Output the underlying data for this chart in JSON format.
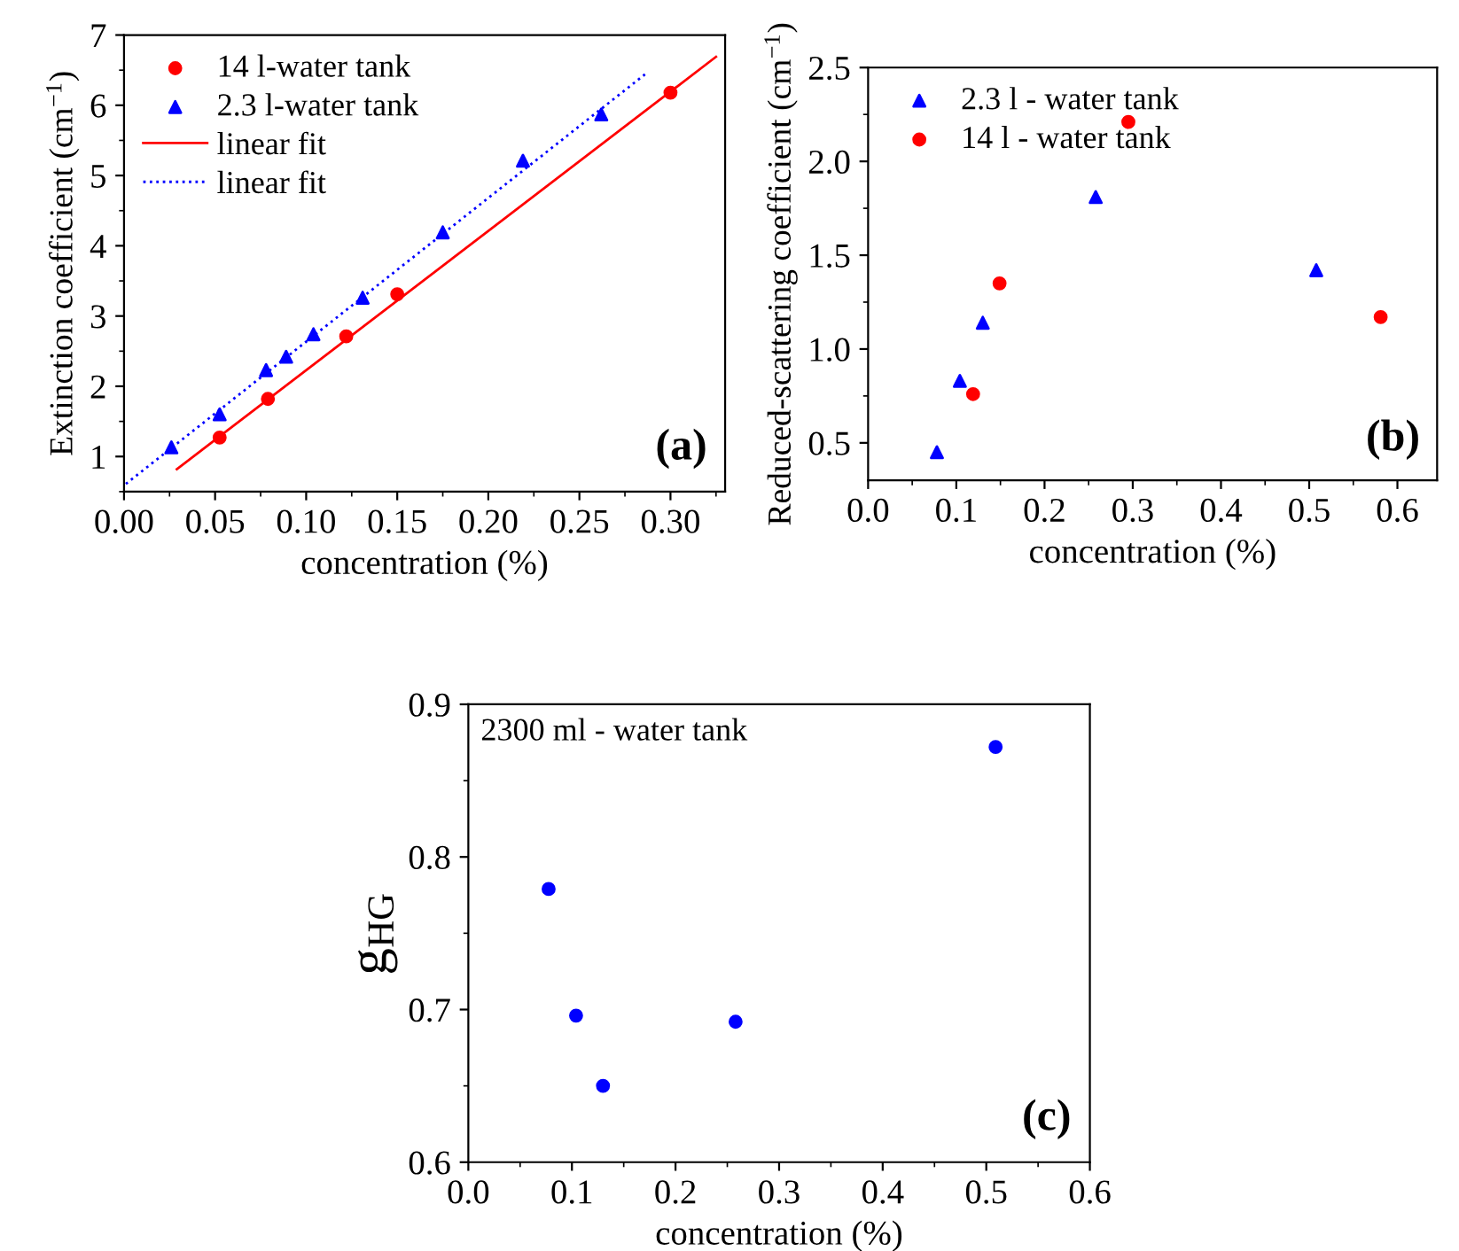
{
  "chart_data": [
    {
      "type": "scatter",
      "xlabel": "concentration (%)",
      "ylabel": "Extinction coefficient (cm$^{−1}$)",
      "xlim": [
        0,
        0.33
      ],
      "ylim": [
        0.5,
        7
      ],
      "xticks": [
        {
          "value": 0,
          "label": "0.00"
        },
        {
          "value": 0.05,
          "label": "0.05"
        },
        {
          "value": 0.1,
          "label": "0.10"
        },
        {
          "value": 0.15,
          "label": "0.15"
        },
        {
          "value": 0.2,
          "label": "0.20"
        },
        {
          "value": 0.25,
          "label": "0.25"
        },
        {
          "value": 0.3,
          "label": "0.30"
        }
      ],
      "yticks": [
        1,
        2,
        3,
        4,
        5,
        6,
        7
      ],
      "legend": "top left",
      "grid": false,
      "annotations": [
        "(a)"
      ],
      "series": [
        {
          "name": "14 l-water tank",
          "marker": "circle",
          "color": "#ff0000",
          "x": [
            0.0525,
            0.079,
            0.122,
            0.15,
            0.3
          ],
          "values": [
            1.27,
            1.82,
            2.71,
            3.31,
            6.18
          ]
        },
        {
          "name": "2.3 l-water tank",
          "marker": "triangle",
          "color": "#0000ff",
          "x": [
            0.026,
            0.0525,
            0.078,
            0.089,
            0.104,
            0.131,
            0.175,
            0.219,
            0.262
          ],
          "values": [
            1.13,
            1.6,
            2.23,
            2.42,
            2.74,
            3.26,
            4.19,
            5.21,
            5.87
          ]
        },
        {
          "name": "linear fit",
          "type": "line",
          "line_style": "solid",
          "color": "#ff0000",
          "x": [
            0.029,
            0.325
          ],
          "values": [
            0.82,
            6.69
          ]
        },
        {
          "name": "linear fit",
          "type": "line",
          "line_style": "dotted",
          "color": "#0000ff",
          "x": [
            0.001,
            0.286
          ],
          "values": [
            0.61,
            6.44
          ]
        }
      ]
    },
    {
      "type": "scatter",
      "xlabel": "concentration (%)",
      "ylabel": "Reduced-scattering coefficient (cm$^{−1}$)",
      "xlim": [
        0,
        0.645
      ],
      "ylim": [
        0.3,
        2.5
      ],
      "xticks": [
        {
          "value": 0,
          "label": "0.0"
        },
        0.1,
        0.2,
        0.3,
        0.4,
        0.5,
        0.6
      ],
      "yticks": [
        {
          "value": 0.5,
          "label": "0.5"
        },
        {
          "value": 1,
          "label": "1.0"
        },
        {
          "value": 1.5,
          "label": "1.5"
        },
        {
          "value": 2,
          "label": "2.0"
        },
        {
          "value": 2.5,
          "label": "2.5"
        }
      ],
      "legend": "top left",
      "grid": false,
      "annotations": [
        "(b)"
      ],
      "series": [
        {
          "name": "2.3 l - water tank",
          "marker": "triangle",
          "color": "#0000ff",
          "x": [
            0.078,
            0.104,
            0.13,
            0.258,
            0.508
          ],
          "values": [
            0.45,
            0.83,
            1.14,
            1.81,
            1.42
          ]
        },
        {
          "name": "14 l - water tank",
          "marker": "circle",
          "color": "#ff0000",
          "x": [
            0.119,
            0.149,
            0.295,
            0.581
          ],
          "values": [
            0.76,
            1.35,
            2.21,
            1.17
          ]
        }
      ]
    },
    {
      "type": "scatter",
      "xlabel": "concentration (%)",
      "ylabel": "g$_{HG}$",
      "xlim": [
        0,
        0.6
      ],
      "ylim": [
        0.6,
        0.9
      ],
      "xticks": [
        {
          "value": 0,
          "label": "0.0"
        },
        0.1,
        0.2,
        0.3,
        0.4,
        0.5,
        0.6
      ],
      "yticks": [
        0.6,
        0.7,
        0.8,
        0.9
      ],
      "legend": false,
      "grid": false,
      "annotations": [
        "2300 ml - water tank",
        "(c)"
      ],
      "series": [
        {
          "marker": "circle",
          "color": "#0000ff",
          "x": [
            0.0775,
            0.104,
            0.13,
            0.258,
            0.509
          ],
          "values": [
            0.779,
            0.696,
            0.65,
            0.692,
            0.872
          ]
        }
      ]
    }
  ]
}
